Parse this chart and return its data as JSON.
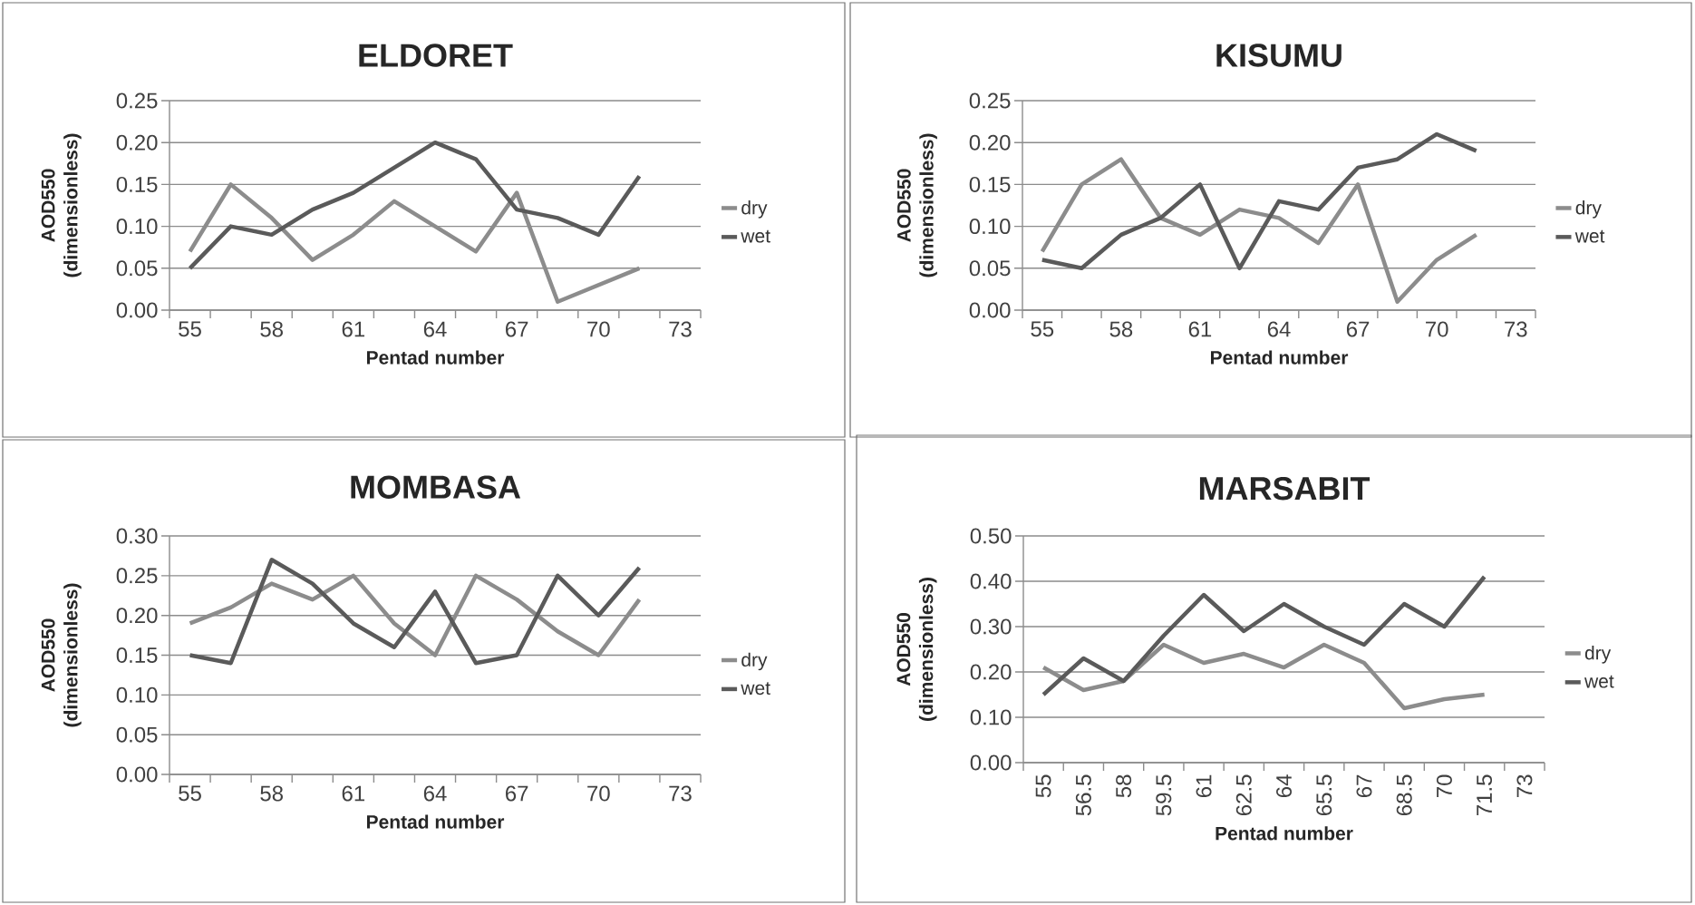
{
  "chart_data": [
    {
      "type": "line",
      "title": "ELDORET",
      "xlabel": "Pentad number",
      "ylabel": "AOD550 (dimensionless)",
      "categories": [
        "55",
        null,
        "58",
        null,
        "61",
        null,
        "64",
        null,
        "67",
        null,
        "70",
        null,
        "73"
      ],
      "ylim": [
        0,
        0.25
      ],
      "yticks": [
        {
          "value": 0,
          "label": "0.00"
        },
        {
          "value": 0.05,
          "label": "0.05"
        },
        {
          "value": 0.1,
          "label": "0.10"
        },
        {
          "value": 0.15,
          "label": "0.15"
        },
        {
          "value": 0.2,
          "label": "0.20"
        },
        {
          "value": 0.25,
          "label": "0.25"
        }
      ],
      "grid": "y",
      "legend": "right",
      "series": [
        {
          "name": "dry",
          "color": "#8c8c8c",
          "values": [
            0.07,
            0.15,
            0.11,
            0.06,
            0.09,
            0.13,
            0.1,
            0.07,
            0.14,
            0.01,
            0.03,
            0.05,
            null
          ]
        },
        {
          "name": "wet",
          "color": "#5a5a5a",
          "values": [
            0.05,
            0.1,
            0.09,
            0.12,
            0.14,
            0.17,
            0.2,
            0.18,
            0.12,
            0.11,
            0.09,
            0.16,
            null
          ]
        }
      ]
    },
    {
      "type": "line",
      "title": "KISUMU",
      "xlabel": "Pentad number",
      "ylabel": "AOD550 (dimensionless)",
      "categories": [
        "55",
        null,
        "58",
        null,
        "61",
        null,
        "64",
        null,
        "67",
        null,
        "70",
        null,
        "73"
      ],
      "ylim": [
        0,
        0.25
      ],
      "yticks": [
        {
          "value": 0,
          "label": "0.00"
        },
        {
          "value": 0.05,
          "label": "0.05"
        },
        {
          "value": 0.1,
          "label": "0.10"
        },
        {
          "value": 0.15,
          "label": "0.15"
        },
        {
          "value": 0.2,
          "label": "0.20"
        },
        {
          "value": 0.25,
          "label": "0.25"
        }
      ],
      "grid": "y",
      "legend": "right",
      "series": [
        {
          "name": "dry",
          "color": "#8c8c8c",
          "values": [
            0.07,
            0.15,
            0.18,
            0.11,
            0.09,
            0.12,
            0.11,
            0.08,
            0.15,
            0.01,
            0.06,
            0.09,
            null
          ]
        },
        {
          "name": "wet",
          "color": "#5a5a5a",
          "values": [
            0.06,
            0.05,
            0.09,
            0.11,
            0.15,
            0.05,
            0.13,
            0.12,
            0.17,
            0.18,
            0.21,
            0.19,
            null
          ]
        }
      ]
    },
    {
      "type": "line",
      "title": "MOMBASA",
      "xlabel": "Pentad number",
      "ylabel": "AOD550 (dimensionless)",
      "categories": [
        "55",
        null,
        "58",
        null,
        "61",
        null,
        "64",
        null,
        "67",
        null,
        "70",
        null,
        "73"
      ],
      "ylim": [
        0,
        0.3
      ],
      "yticks": [
        {
          "value": 0,
          "label": "0.00"
        },
        {
          "value": 0.05,
          "label": "0.05"
        },
        {
          "value": 0.1,
          "label": "0.10"
        },
        {
          "value": 0.15,
          "label": "0.15"
        },
        {
          "value": 0.2,
          "label": "0.20"
        },
        {
          "value": 0.25,
          "label": "0.25"
        },
        {
          "value": 0.3,
          "label": "0.30"
        }
      ],
      "grid": "y",
      "legend": "right",
      "series": [
        {
          "name": "dry",
          "color": "#8c8c8c",
          "values": [
            0.19,
            0.21,
            0.24,
            0.22,
            0.25,
            0.19,
            0.15,
            0.25,
            0.22,
            0.18,
            0.15,
            0.22,
            null
          ]
        },
        {
          "name": "wet",
          "color": "#5a5a5a",
          "values": [
            0.15,
            0.14,
            0.27,
            0.24,
            0.19,
            0.16,
            0.23,
            0.14,
            0.15,
            0.25,
            0.2,
            0.26,
            null
          ]
        }
      ]
    },
    {
      "type": "line",
      "title": "MARSABIT",
      "xlabel": "Pentad number",
      "ylabel": "AOD550 (dimensionless)",
      "categories": [
        "55",
        "56.5",
        "58",
        "59.5",
        "61",
        "62.5",
        "64",
        "65.5",
        "67",
        "68.5",
        "70",
        "71.5",
        "73"
      ],
      "ylim": [
        0,
        0.5
      ],
      "yticks": [
        {
          "value": 0,
          "label": "0.00"
        },
        {
          "value": 0.1,
          "label": "0.10"
        },
        {
          "value": 0.2,
          "label": "0.20"
        },
        {
          "value": 0.3,
          "label": "0.30"
        },
        {
          "value": 0.4,
          "label": "0.40"
        },
        {
          "value": 0.5,
          "label": "0.50"
        }
      ],
      "grid": "y",
      "legend": "right",
      "series": [
        {
          "name": "dry",
          "color": "#8c8c8c",
          "values": [
            0.21,
            0.16,
            0.18,
            0.26,
            0.22,
            0.24,
            0.21,
            0.26,
            0.22,
            0.12,
            0.14,
            0.15,
            null
          ]
        },
        {
          "name": "wet",
          "color": "#5a5a5a",
          "values": [
            0.15,
            0.23,
            0.18,
            0.28,
            0.37,
            0.29,
            0.35,
            0.3,
            0.26,
            0.35,
            0.3,
            0.41,
            null
          ]
        }
      ]
    }
  ]
}
